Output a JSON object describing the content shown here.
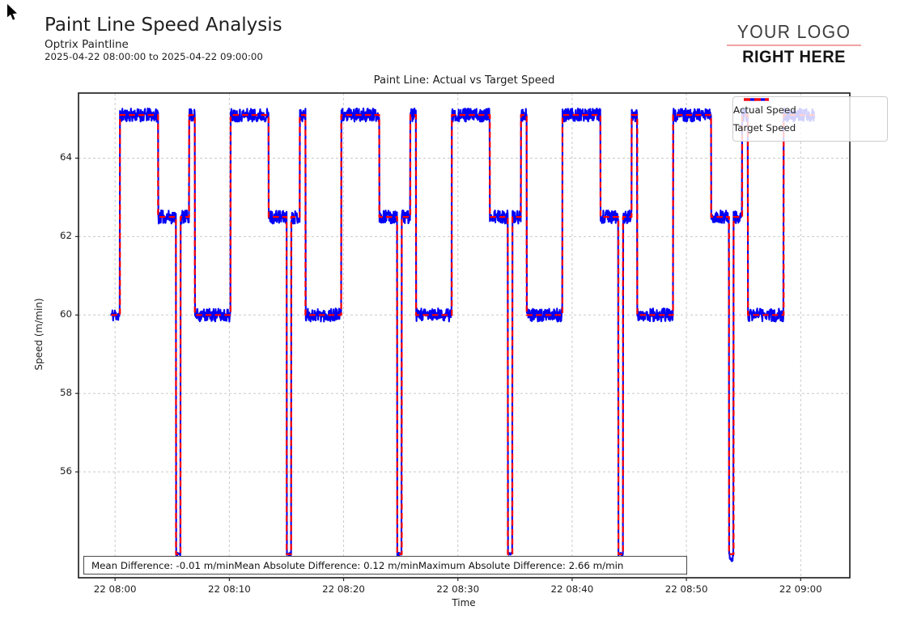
{
  "header": {
    "title": "Paint Line Speed Analysis",
    "subtitle": "Optrix Paintline",
    "date_range": "2025-04-22 08:00:00 to 2025-04-22 09:00:00"
  },
  "logo": {
    "line1": "YOUR LOGO",
    "line2": "RIGHT HERE",
    "underline_color": "#f0a3a3"
  },
  "stats_box": {
    "display_text": "Mean Difference: -0.01 m/minMean Absolute Difference: 0.12 m/minMaximum Absolute Difference: 2.66 m/min",
    "mean_difference": "-0.01 m/min",
    "mean_absolute_difference": "0.12 m/min",
    "maximum_absolute_difference": "2.66 m/min"
  },
  "chart_data": {
    "type": "line",
    "title": "Paint Line: Actual vs Target Speed",
    "xlabel": "Time",
    "ylabel": "Speed (m/min)",
    "x_unit": "minutes after 2025-04-22 08:00:00",
    "x_tick_minutes": [
      0,
      10,
      20,
      30,
      40,
      50,
      60
    ],
    "x_tick_labels": [
      "22 08:00",
      "22 08:10",
      "22 08:20",
      "22 08:30",
      "22 08:40",
      "22 08:50",
      "22 09:00"
    ],
    "y_ticks": [
      56,
      58,
      60,
      62,
      64
    ],
    "xlim_minutes": [
      -3.2,
      64.3
    ],
    "ylim": [
      53.3,
      65.66
    ],
    "grid": true,
    "colors": {
      "actual": "#0000f5",
      "target": "#ff0000",
      "grid": "#c9c9c9",
      "spine": "#262626"
    },
    "legend": {
      "position": "upper right",
      "entries": [
        {
          "label": "Actual Speed",
          "style": "solid",
          "color": "#0000f5"
        },
        {
          "label": "Target Speed",
          "style": "dashed",
          "color": "#ff0000"
        }
      ]
    },
    "series": [
      {
        "name": "Actual Speed",
        "derived": "target speed plus measurement noise",
        "noise_amplitude_m_per_min": 0.17,
        "sample_step_minutes": 0.03
      },
      {
        "name": "Target Speed",
        "representation": "step segments [start_min, end_min, value_m_per_min]",
        "segments": [
          [
            -0.35,
            0.43,
            60.0
          ],
          [
            0.43,
            3.76,
            65.1
          ],
          [
            3.76,
            5.33,
            62.5
          ],
          [
            5.33,
            5.73,
            53.9
          ],
          [
            5.73,
            6.48,
            62.5
          ],
          [
            6.48,
            6.98,
            65.1
          ],
          [
            6.98,
            10.11,
            60.0
          ],
          [
            10.11,
            13.44,
            65.1
          ],
          [
            13.44,
            15.01,
            62.5
          ],
          [
            15.01,
            15.41,
            53.9
          ],
          [
            15.41,
            16.16,
            62.5
          ],
          [
            16.16,
            16.66,
            65.1
          ],
          [
            16.66,
            19.79,
            60.0
          ],
          [
            19.79,
            23.12,
            65.1
          ],
          [
            23.12,
            24.69,
            62.5
          ],
          [
            24.69,
            25.09,
            53.9
          ],
          [
            25.09,
            25.84,
            62.5
          ],
          [
            25.84,
            26.34,
            65.1
          ],
          [
            26.34,
            29.47,
            60.0
          ],
          [
            29.47,
            32.8,
            65.1
          ],
          [
            32.8,
            34.37,
            62.5
          ],
          [
            34.37,
            34.77,
            53.9
          ],
          [
            34.77,
            35.52,
            62.5
          ],
          [
            35.52,
            36.02,
            65.1
          ],
          [
            36.02,
            39.15,
            60.0
          ],
          [
            39.15,
            42.48,
            65.1
          ],
          [
            42.48,
            44.05,
            62.5
          ],
          [
            44.05,
            44.45,
            53.9
          ],
          [
            44.45,
            45.2,
            62.5
          ],
          [
            45.2,
            45.7,
            65.1
          ],
          [
            45.7,
            48.83,
            60.0
          ],
          [
            48.83,
            52.16,
            65.1
          ],
          [
            52.16,
            53.73,
            62.5
          ],
          [
            53.73,
            54.13,
            53.9
          ],
          [
            54.13,
            54.88,
            62.5
          ],
          [
            54.88,
            55.38,
            65.1
          ],
          [
            55.38,
            58.51,
            60.0
          ],
          [
            58.51,
            61.2,
            65.1
          ]
        ]
      }
    ]
  }
}
